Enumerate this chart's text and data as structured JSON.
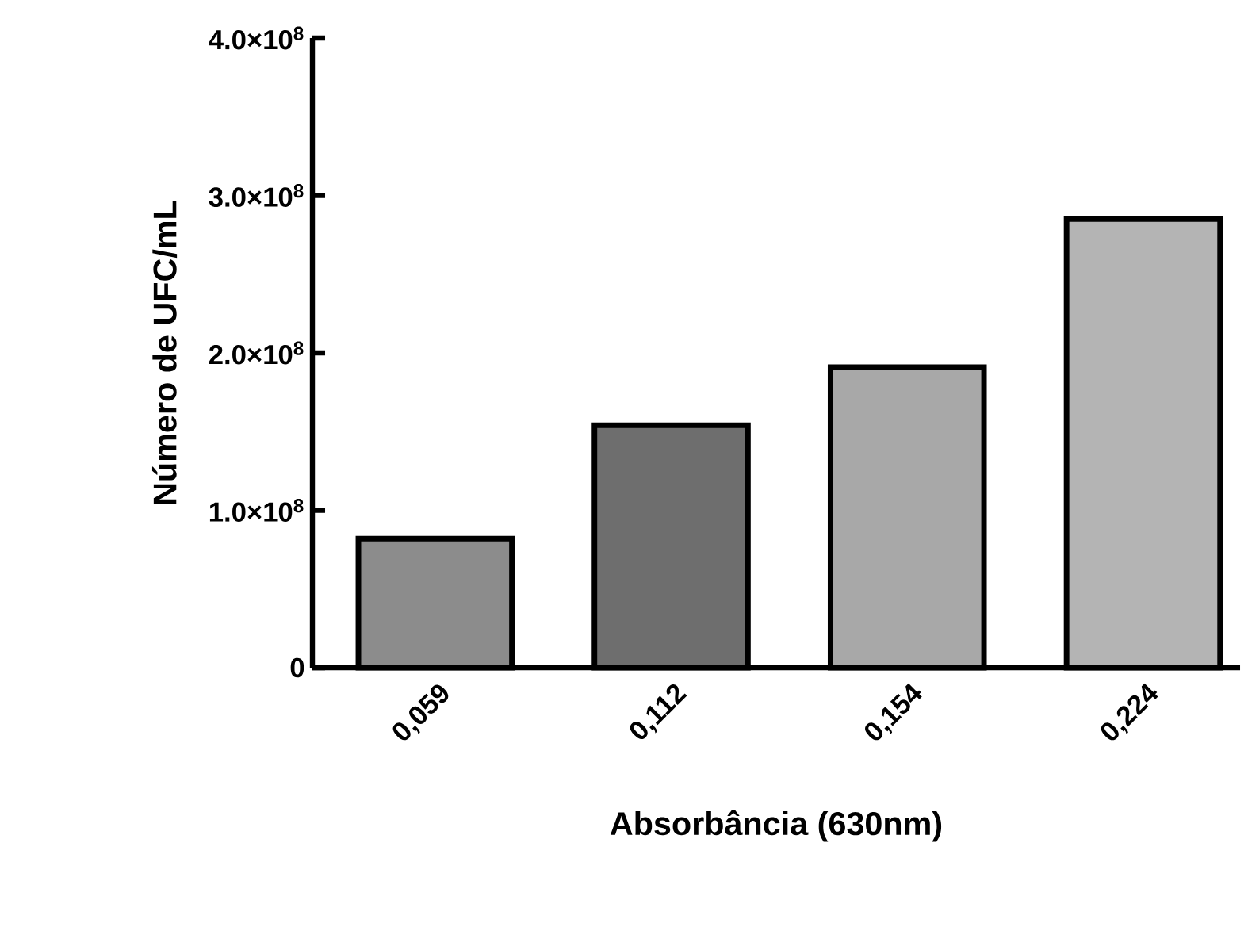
{
  "chart_data": {
    "type": "bar",
    "xlabel": "Absorbância (630nm)",
    "ylabel": "Número de UFC/mL",
    "categories": [
      "0,059",
      "0,112",
      "0,154",
      "0,224"
    ],
    "values": [
      82000000,
      154000000,
      191000000,
      285000000
    ],
    "colors": [
      "#8c8c8c",
      "#6e6e6e",
      "#a8a8a8",
      "#b4b4b4"
    ],
    "ylim": [
      0,
      400000000
    ],
    "yticks": [
      0,
      {
        "value": 100000000,
        "label": "1.0×10$^{8}$"
      },
      {
        "value": 200000000,
        "label": "2.0×10$^{8}$"
      },
      {
        "value": 300000000,
        "label": "3.0×10$^{8}$"
      },
      {
        "value": 400000000,
        "label": "4.0×10$^{8}$"
      }
    ]
  }
}
